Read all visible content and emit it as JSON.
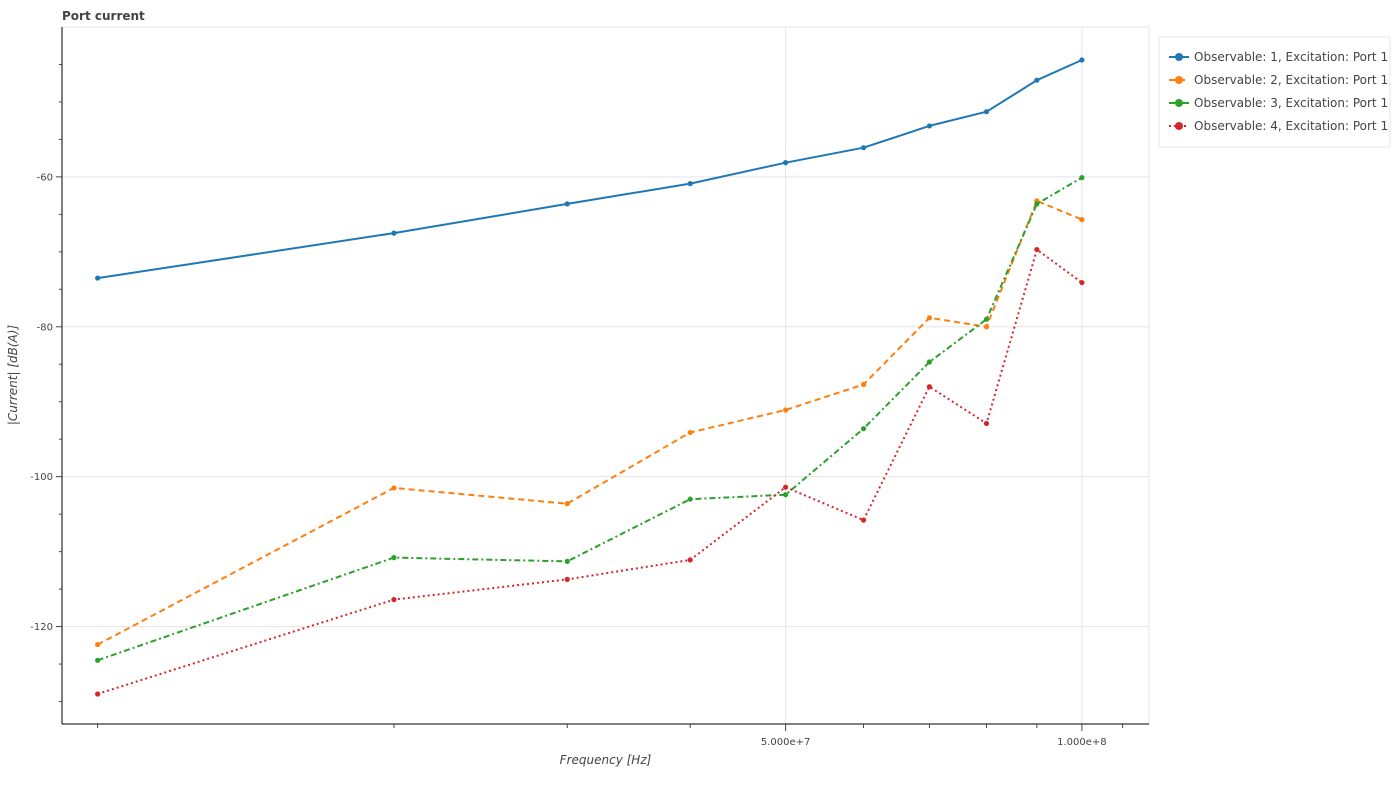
{
  "chart_data": {
    "type": "line",
    "title": "Port current",
    "xlabel": "Frequency [Hz]",
    "ylabel": "|Current| [dB(A)]",
    "xscale": "log",
    "xlim": [
      9200000.0,
      117000000.0
    ],
    "ylim": [
      -133,
      -40
    ],
    "x_tick_labels": [
      {
        "value": 50000000,
        "label": "5.000e+7"
      },
      {
        "value": 100000000,
        "label": "1.000e+8"
      }
    ],
    "y_tick_labels": [
      {
        "value": -60,
        "label": "-60"
      },
      {
        "value": -80,
        "label": "-80"
      },
      {
        "value": -100,
        "label": "-100"
      },
      {
        "value": -120,
        "label": "-120"
      }
    ],
    "grid": true,
    "legend_position": "top-right (outside plot)",
    "x": [
      10000000,
      20000000,
      30000000,
      40000000,
      50000000,
      60000000,
      70000000,
      80000000,
      90000000,
      100000000
    ],
    "series": [
      {
        "name": "Observable: 1, Excitation: Port 1",
        "color": "#1f77b4",
        "line_style": "solid",
        "values": [
          -73.5,
          -67.5,
          -63.6,
          -60.9,
          -58.1,
          -56.1,
          -53.2,
          -51.3,
          -47.1,
          -44.4
        ]
      },
      {
        "name": "Observable: 2, Excitation: Port 1",
        "color": "#ff7f0e",
        "line_style": "dashed",
        "values": [
          -122.4,
          -101.5,
          -103.6,
          -94.1,
          -91.1,
          -87.7,
          -78.8,
          -80.0,
          -63.2,
          -65.7
        ]
      },
      {
        "name": "Observable: 3, Excitation: Port 1",
        "color": "#2ca02c",
        "line_style": "dashdot",
        "values": [
          -124.5,
          -110.8,
          -111.3,
          -103.0,
          -102.4,
          -93.6,
          -84.7,
          -79.0,
          -63.6,
          -60.1
        ]
      },
      {
        "name": "Observable: 4, Excitation: Port 1",
        "color": "#d62728",
        "line_style": "dotted",
        "values": [
          -129.0,
          -116.4,
          -113.7,
          -111.1,
          -101.4,
          -105.8,
          -88.0,
          -92.9,
          -69.7,
          -74.1
        ]
      }
    ]
  }
}
